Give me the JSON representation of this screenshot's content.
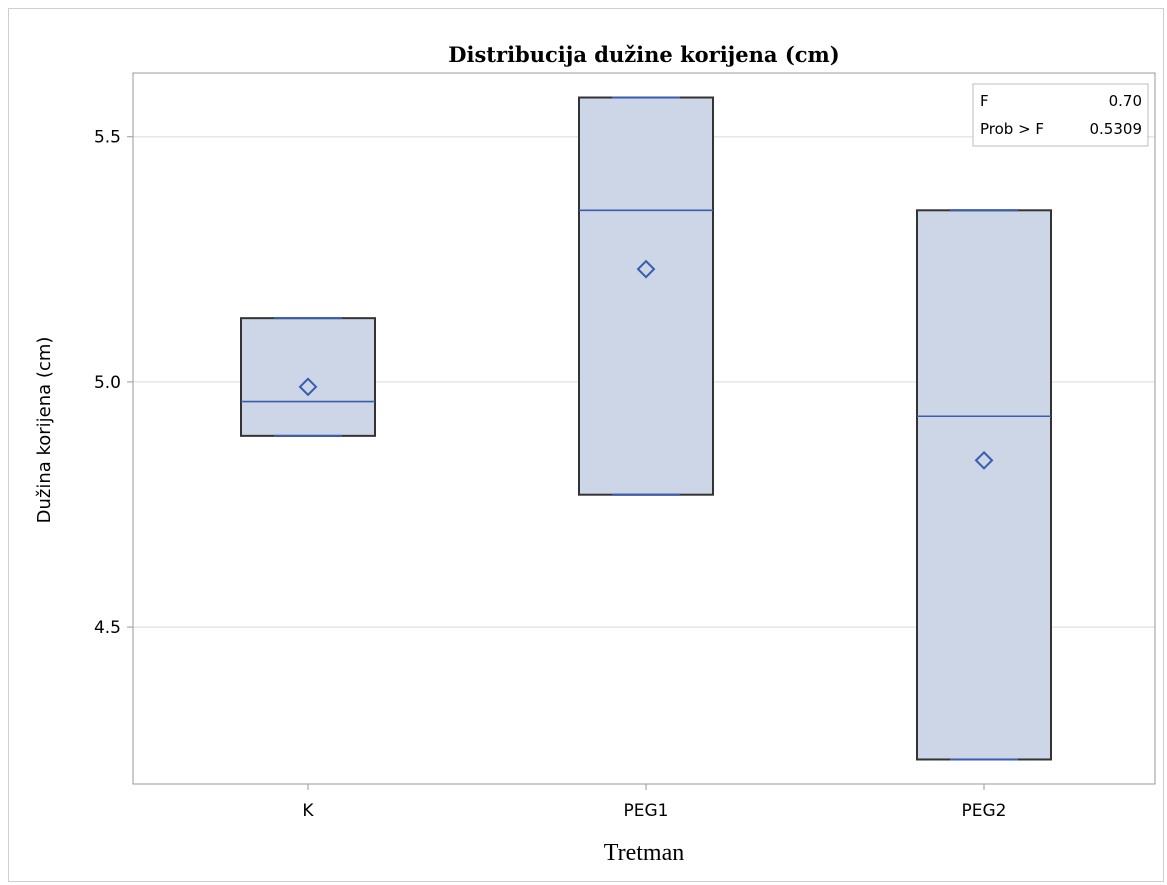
{
  "chart_data": {
    "type": "box",
    "title": "Distribucija dužine korijena (cm)",
    "xlabel": "Tretman",
    "ylabel": "Dužina korijena (cm)",
    "categories": [
      "K",
      "PEG1",
      "PEG2"
    ],
    "boxes": [
      {
        "category": "K",
        "min": 4.89,
        "q1": 4.89,
        "median": 4.96,
        "mean": 4.99,
        "q3": 5.13,
        "max": 5.13
      },
      {
        "category": "PEG1",
        "min": 4.77,
        "q1": 4.77,
        "median": 5.35,
        "mean": 5.23,
        "q3": 5.58,
        "max": 5.58
      },
      {
        "category": "PEG2",
        "min": 4.23,
        "q1": 4.23,
        "median": 4.93,
        "mean": 4.84,
        "q3": 5.35,
        "max": 5.35
      }
    ],
    "ylim": [
      4.18,
      5.63
    ],
    "yticks": [
      "4.5",
      "5.0",
      "5.5"
    ],
    "ytick_values": [
      4.5,
      5.0,
      5.5
    ],
    "grid": true,
    "stats_box": {
      "placement": "top-right",
      "f_label": "F",
      "f_value": "0.70",
      "p_label": "Prob > F",
      "p_value": "0.5309"
    },
    "colors": {
      "box_fill": "#ccd6e6",
      "box_edge": "#333333",
      "median": "#3a5db0",
      "mean_marker": "#3a5db0",
      "grid": "#e6e6e6",
      "axis": "#999999"
    }
  }
}
